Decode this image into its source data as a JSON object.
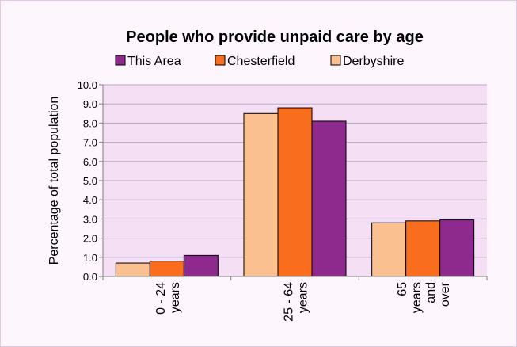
{
  "chart_data": {
    "type": "bar",
    "title": "People who provide unpaid care by age",
    "ylabel": "Percentage of total population",
    "xlabel": "",
    "ylim": [
      0,
      10
    ],
    "yticks": [
      "0.0",
      "1.0",
      "2.0",
      "3.0",
      "4.0",
      "5.0",
      "6.0",
      "7.0",
      "8.0",
      "9.0",
      "10.0"
    ],
    "categories": [
      {
        "lines": [
          "0 - 24",
          "years"
        ]
      },
      {
        "lines": [
          "25 - 64",
          "years"
        ]
      },
      {
        "lines": [
          "65",
          "years",
          "and",
          "over"
        ]
      }
    ],
    "legend": [
      "This Area",
      "Chesterfield",
      "Derbyshire"
    ],
    "legend_position": "top",
    "grid": true,
    "series": [
      {
        "name": "Derbyshire",
        "color": "#fac090",
        "values": [
          0.7,
          8.5,
          2.8
        ]
      },
      {
        "name": "Chesterfield",
        "color": "#f96e1e",
        "values": [
          0.8,
          8.8,
          2.9
        ]
      },
      {
        "name": "This Area",
        "color": "#8e2a8e",
        "values": [
          1.1,
          8.1,
          2.95
        ]
      }
    ],
    "legend_colors": [
      "#8e2a8e",
      "#f96e1e",
      "#fac090"
    ]
  }
}
